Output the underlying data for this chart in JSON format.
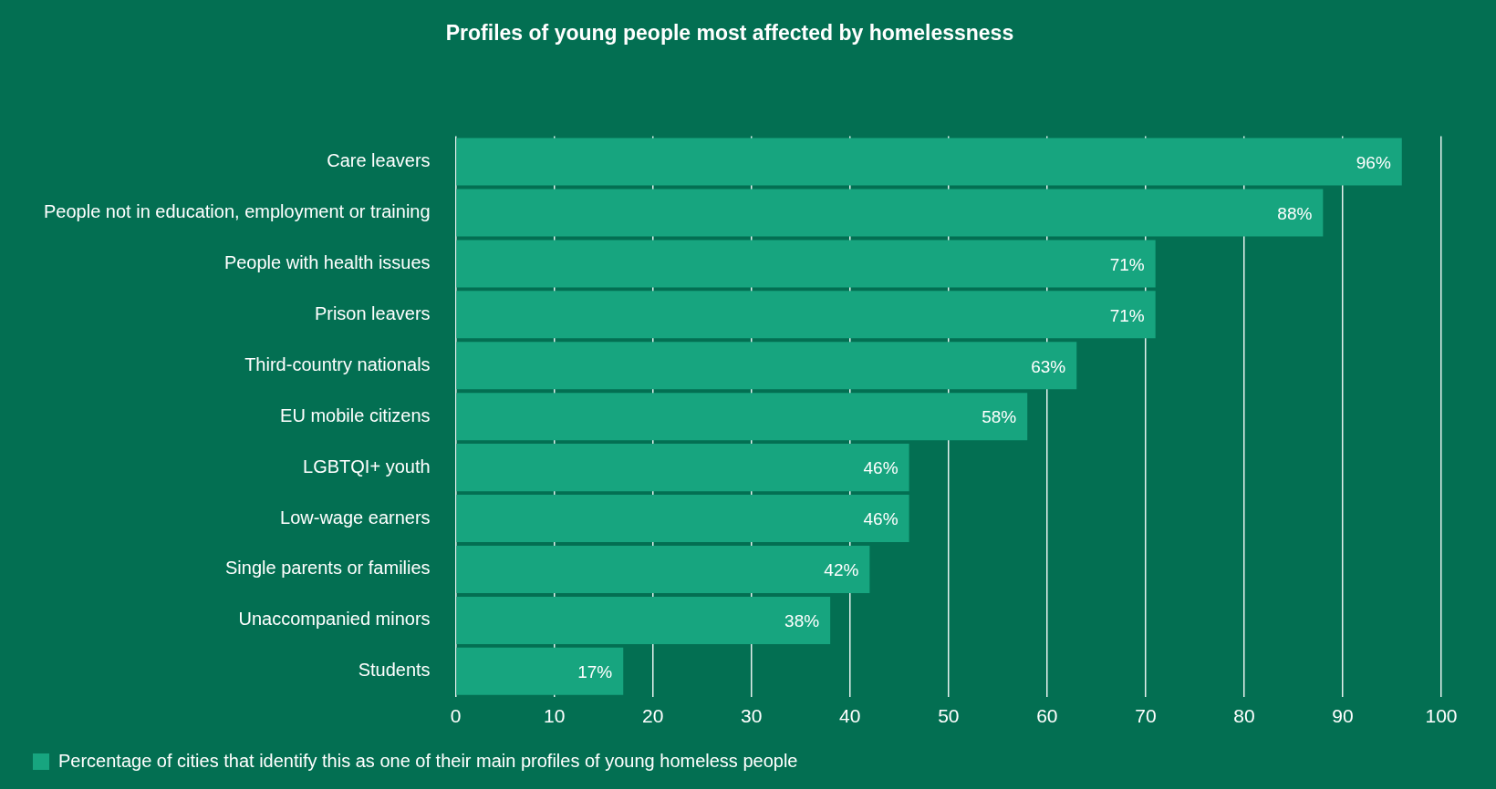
{
  "chart_data": {
    "type": "bar",
    "orientation": "horizontal",
    "title": "Profiles of young people most affected by homelessness",
    "categories": [
      "Care leavers",
      "People not in education, employment or training",
      "People with health issues",
      "Prison leavers",
      "Third-country nationals",
      "EU mobile citizens",
      "LGBTQI+ youth",
      "Low-wage earners",
      "Single parents or families",
      "Unaccompanied minors",
      "Students"
    ],
    "series": [
      {
        "name": "Percentage of cities that identify this as one of their main profiles of young homeless people",
        "color": "#17a57f",
        "values": [
          96,
          88,
          71,
          71,
          63,
          58,
          46,
          46,
          42,
          38,
          17
        ]
      }
    ],
    "value_labels": [
      "96%",
      "88%",
      "71%",
      "71%",
      "63%",
      "58%",
      "46%",
      "46%",
      "42%",
      "38%",
      "17%"
    ],
    "xlim": [
      0,
      100
    ],
    "xticks": [
      0,
      10,
      20,
      30,
      40,
      50,
      60,
      70,
      80,
      90,
      100
    ],
    "grid": "x",
    "legend": "bottom left"
  }
}
